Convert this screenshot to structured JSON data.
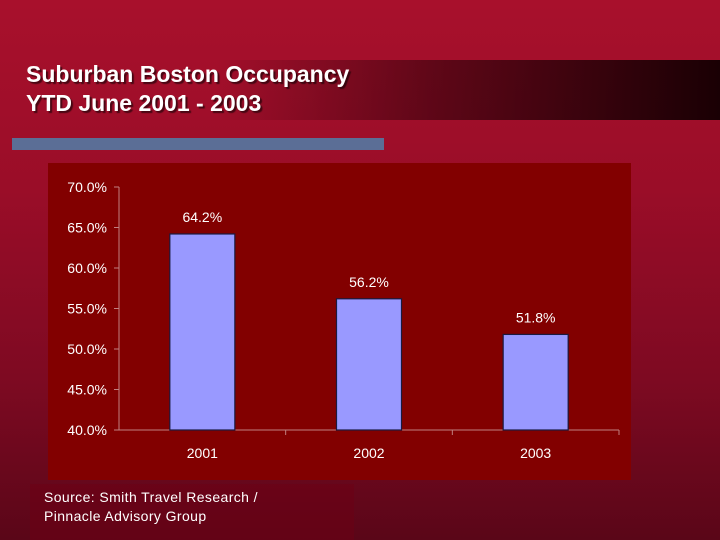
{
  "slide": {
    "title_line1": "Suburban Boston Occupancy",
    "title_line2": "YTD June 2001 - 2003",
    "source_line1": "Source: Smith Travel Research /",
    "source_line2": "Pinnacle Advisory Group"
  },
  "chart_data": {
    "type": "bar",
    "categories": [
      "2001",
      "2002",
      "2003"
    ],
    "values": [
      64.2,
      56.2,
      51.8
    ],
    "data_labels": [
      "64.2%",
      "56.2%",
      "51.8%"
    ],
    "ylim": [
      40,
      70
    ],
    "yticks": [
      70,
      65,
      60,
      55,
      50,
      45,
      40
    ],
    "ytick_labels": [
      "70.0%",
      "65.0%",
      "60.0%",
      "55.0%",
      "50.0%",
      "45.0%",
      "40.0%"
    ],
    "grid": false,
    "legend": "none",
    "colors": {
      "bar": "#9999ff",
      "bar_stroke": "#1a1a40",
      "plot_bg": "#820000",
      "axis": "#c08080",
      "text": "#ffffff"
    }
  }
}
